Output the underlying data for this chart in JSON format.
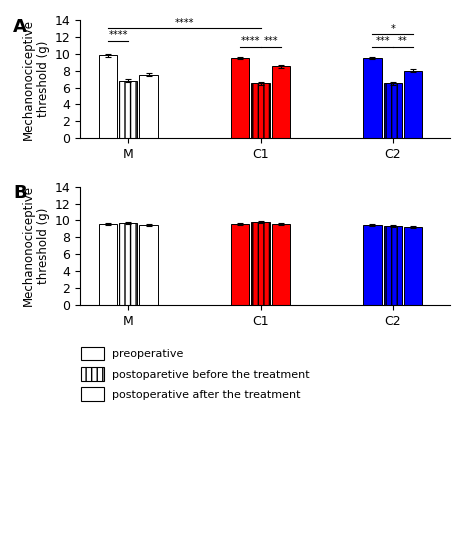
{
  "panel_A": {
    "bars": {
      "preop": [
        9.8,
        9.55,
        9.55
      ],
      "post_before": [
        6.8,
        6.5,
        6.5
      ],
      "post_after": [
        7.5,
        8.5,
        8.0
      ]
    },
    "errors": {
      "preop": [
        0.15,
        0.12,
        0.12
      ],
      "post_before": [
        0.18,
        0.15,
        0.18
      ],
      "post_after": [
        0.18,
        0.2,
        0.2
      ]
    }
  },
  "panel_B": {
    "bars": {
      "preop": [
        9.55,
        9.55,
        9.5
      ],
      "post_before": [
        9.65,
        9.8,
        9.4
      ],
      "post_after": [
        9.45,
        9.55,
        9.2
      ]
    },
    "errors": {
      "preop": [
        0.12,
        0.12,
        0.12
      ],
      "post_before": [
        0.12,
        0.12,
        0.12
      ],
      "post_after": [
        0.12,
        0.12,
        0.15
      ]
    }
  },
  "fill_colors": [
    "#ffffff",
    "#ff0000",
    "#0000ff"
  ],
  "hatch_solid": [
    "",
    "",
    ""
  ],
  "hatch_vlines": [
    "|",
    "|",
    "|"
  ],
  "hatch_hlines": [
    "-",
    "-",
    "-"
  ],
  "ylabel": "Mechanonociceptive\nthreshold (g)",
  "ylim": [
    0,
    14
  ],
  "yticks": [
    0,
    2,
    4,
    6,
    8,
    10,
    12,
    14
  ],
  "group_labels": [
    "M",
    "C1",
    "C2"
  ],
  "group_centers": [
    1.0,
    2.5,
    4.0
  ],
  "bar_width": 0.23,
  "background_color": "#ffffff",
  "legend_labels": [
    "preoperative",
    "postoparetive before the treatment",
    "postoperative after the treatment"
  ]
}
